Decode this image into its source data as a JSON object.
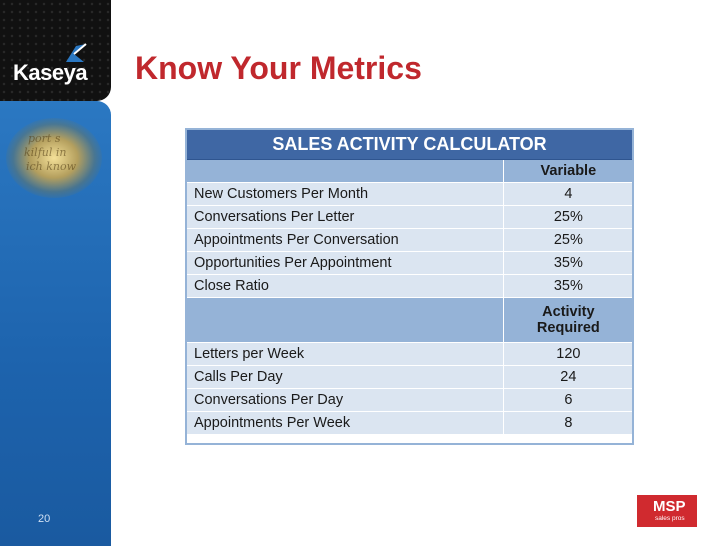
{
  "brand": {
    "name": "Kaseya"
  },
  "slide": {
    "title": "Know Your Metrics",
    "number": "20"
  },
  "table": {
    "title": "SALES ACTIVITY CALCULATOR",
    "variable_header": "Variable",
    "activity_header_line1": "Activity",
    "activity_header_line2": "Required",
    "variables": [
      {
        "label": "New Customers Per Month",
        "value": "4"
      },
      {
        "label": "Conversations Per Letter",
        "value": "25%"
      },
      {
        "label": "Appointments Per Conversation",
        "value": "25%"
      },
      {
        "label": "Opportunities Per Appointment",
        "value": "35%"
      },
      {
        "label": "Close Ratio",
        "value": "35%"
      }
    ],
    "activities": [
      {
        "label": "Letters per Week",
        "value": "120"
      },
      {
        "label": "Calls Per Day",
        "value": "24"
      },
      {
        "label": "Conversations Per Day",
        "value": "6"
      },
      {
        "label": "Appointments Per Week",
        "value": "8"
      }
    ]
  },
  "footer_logo": {
    "name": "MSP",
    "tagline": "sales pros"
  },
  "colors": {
    "title_red": "#c0282d",
    "header_blue": "#3f67a4",
    "row_light": "#dbe5f1",
    "row_mid": "#95b3d7",
    "sidebar_blue": "#2b78c2"
  }
}
